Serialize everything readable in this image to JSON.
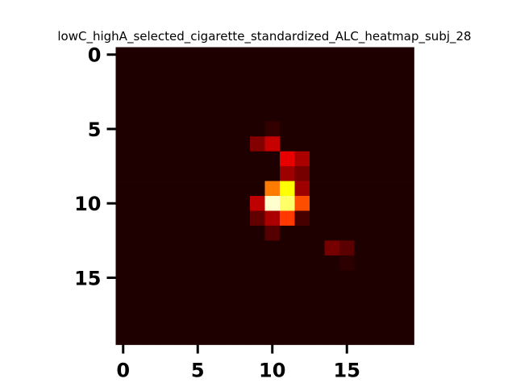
{
  "chart_data": {
    "type": "heatmap",
    "title": "lowC_highA_selected_cigarette_standardized_ALC_heatmap_subj_28",
    "xlabel": "",
    "ylabel": "",
    "colormap": "hot",
    "rows": 20,
    "cols": 20,
    "xlim": [
      -0.5,
      19.5
    ],
    "ylim": [
      19.5,
      -0.5
    ],
    "x_ticks": [
      0,
      5,
      10,
      15
    ],
    "y_ticks": [
      0,
      5,
      10,
      15
    ],
    "x_tick_labels": [
      "0",
      "5",
      "10",
      "15"
    ],
    "y_tick_labels": [
      "0",
      "5",
      "10",
      "15"
    ],
    "vmin": 0.0,
    "vmax": 1.0,
    "background_value": 0.03,
    "cells": [
      {
        "row": 5,
        "col": 10,
        "value": 0.06
      },
      {
        "row": 6,
        "col": 9,
        "value": 0.18
      },
      {
        "row": 6,
        "col": 10,
        "value": 0.28
      },
      {
        "row": 7,
        "col": 11,
        "value": 0.33
      },
      {
        "row": 7,
        "col": 12,
        "value": 0.24
      },
      {
        "row": 8,
        "col": 11,
        "value": 0.22
      },
      {
        "row": 8,
        "col": 12,
        "value": 0.16
      },
      {
        "row": 9,
        "col": 10,
        "value": 0.55
      },
      {
        "row": 9,
        "col": 11,
        "value": 0.75
      },
      {
        "row": 9,
        "col": 12,
        "value": 0.22
      },
      {
        "row": 10,
        "col": 9,
        "value": 0.27
      },
      {
        "row": 10,
        "col": 10,
        "value": 0.95
      },
      {
        "row": 10,
        "col": 11,
        "value": 0.85
      },
      {
        "row": 10,
        "col": 12,
        "value": 0.48
      },
      {
        "row": 11,
        "col": 9,
        "value": 0.13
      },
      {
        "row": 11,
        "col": 10,
        "value": 0.24
      },
      {
        "row": 11,
        "col": 11,
        "value": 0.45
      },
      {
        "row": 11,
        "col": 12,
        "value": 0.09
      },
      {
        "row": 12,
        "col": 10,
        "value": 0.11
      },
      {
        "row": 13,
        "col": 14,
        "value": 0.16
      },
      {
        "row": 13,
        "col": 15,
        "value": 0.12
      },
      {
        "row": 14,
        "col": 15,
        "value": 0.05
      }
    ]
  }
}
